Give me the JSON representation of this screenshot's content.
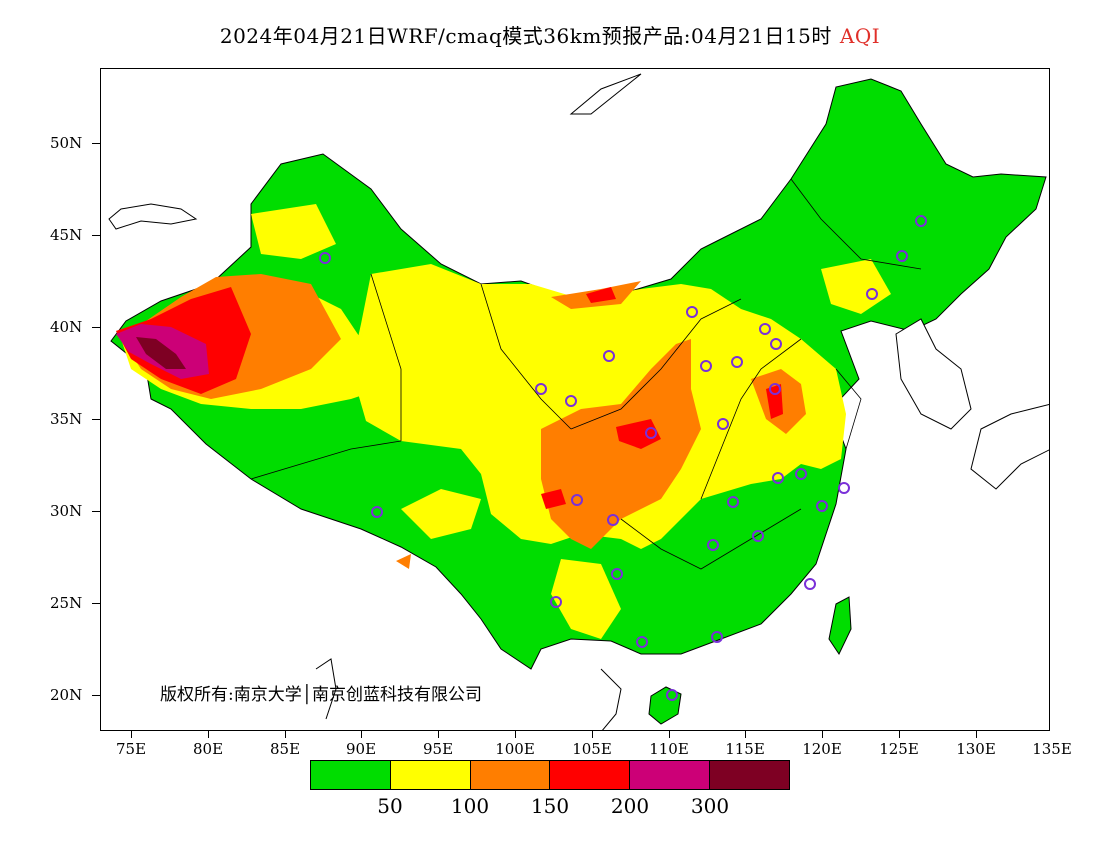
{
  "title": {
    "main": "2024年04月21日WRF/cmaq模式36km预报产品:04月21日15时",
    "highlight": "AQI",
    "highlight_color": "#e0302a"
  },
  "copyright": "版权所有:南京大学│南京创蓝科技有限公司",
  "axes": {
    "lat_labels": [
      "50N",
      "45N",
      "40N",
      "35N",
      "30N",
      "25N",
      "20N"
    ],
    "lon_labels": [
      "75E",
      "80E",
      "85E",
      "90E",
      "95E",
      "100E",
      "105E",
      "110E",
      "115E",
      "120E",
      "125E",
      "130E",
      "135E"
    ]
  },
  "legend": {
    "colors": [
      "#00dd00",
      "#ffff00",
      "#ff7e00",
      "#ff0000",
      "#cc0077",
      "#7e0023"
    ],
    "labels": [
      "50",
      "100",
      "150",
      "200",
      "300"
    ]
  },
  "map_regions": {
    "land_base": "#00dd00",
    "moderate": "#ffff00",
    "usg": "#ff7e00",
    "unhealthy": "#ff0000",
    "very_unhealthy": "#cc0077",
    "hazardous": "#7e0023",
    "station_marker": "#7a30d8"
  }
}
